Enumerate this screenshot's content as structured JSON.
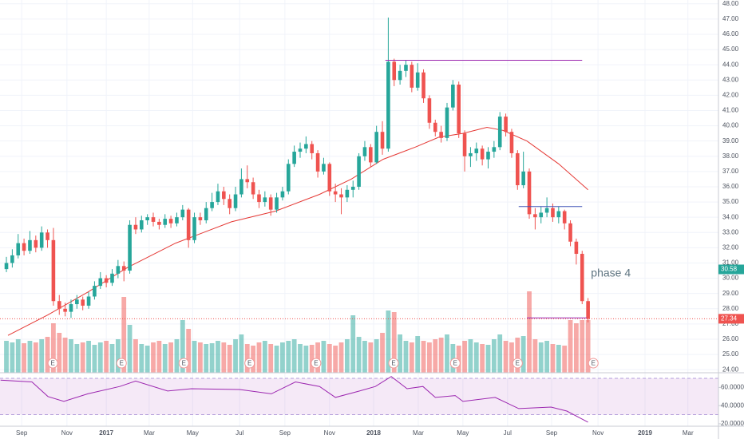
{
  "chart_data": {
    "type": "candlestick",
    "xlim": [
      -1.09,
      121.2
    ],
    "xticks": [
      {
        "value": 2.6,
        "label": "Sep"
      },
      {
        "value": 10.3,
        "label": "Nov"
      },
      {
        "value": 17,
        "label": "2017"
      },
      {
        "value": 24.3,
        "label": "Mar"
      },
      {
        "value": 31.7,
        "label": "May"
      },
      {
        "value": 39.7,
        "label": "Jul"
      },
      {
        "value": 47.4,
        "label": "Sep"
      },
      {
        "value": 55,
        "label": "Nov"
      },
      {
        "value": 62.5,
        "label": "2018"
      },
      {
        "value": 70.1,
        "label": "Mar"
      },
      {
        "value": 77.7,
        "label": "May"
      },
      {
        "value": 85.3,
        "label": "Jul"
      },
      {
        "value": 92.8,
        "label": "Sep"
      },
      {
        "value": 100.7,
        "label": "Nov"
      },
      {
        "value": 108.7,
        "label": "2019"
      },
      {
        "value": 116,
        "label": "Mar"
      }
    ],
    "ylim": [
      23.8,
      48.25
    ],
    "yticks": [
      {
        "value": 24,
        "label": "24.00"
      },
      {
        "value": 25,
        "label": "25.00"
      },
      {
        "value": 26,
        "label": "26.00"
      },
      {
        "value": 27,
        "label": "27.00"
      },
      {
        "value": 28,
        "label": "28.00"
      },
      {
        "value": 29,
        "label": "29.00"
      },
      {
        "value": 30,
        "label": "30.00"
      },
      {
        "value": 31,
        "label": "31.00"
      },
      {
        "value": 32,
        "label": "32.00"
      },
      {
        "value": 33,
        "label": "33.00"
      },
      {
        "value": 34,
        "label": "34.00"
      },
      {
        "value": 35,
        "label": "35.00"
      },
      {
        "value": 36,
        "label": "36.00"
      },
      {
        "value": 37,
        "label": "37.00"
      },
      {
        "value": 38,
        "label": "38.00"
      },
      {
        "value": 39,
        "label": "39.00"
      },
      {
        "value": 40,
        "label": "40.00"
      },
      {
        "value": 41,
        "label": "41.00"
      },
      {
        "value": 42,
        "label": "42.00"
      },
      {
        "value": 43,
        "label": "43.00"
      },
      {
        "value": 44,
        "label": "44.00"
      },
      {
        "value": 45,
        "label": "45.00"
      },
      {
        "value": 46,
        "label": "46.00"
      },
      {
        "value": 47,
        "label": "47.00"
      },
      {
        "value": 48,
        "label": "48.00"
      }
    ],
    "grid": true,
    "candles": {
      "up_color": "#26a69a",
      "down_color": "#ef5350",
      "ohlc": [
        [
          30.6,
          31.4,
          30.4,
          31.0
        ],
        [
          31.0,
          31.9,
          30.7,
          31.5
        ],
        [
          31.5,
          32.9,
          31.3,
          32.3
        ],
        [
          32.3,
          32.6,
          31.5,
          31.8
        ],
        [
          31.8,
          33.1,
          31.6,
          32.5
        ],
        [
          32.5,
          32.8,
          31.7,
          32.0
        ],
        [
          32.0,
          33.4,
          31.8,
          33.0
        ],
        [
          33.0,
          33.2,
          32.0,
          32.5
        ],
        [
          32.5,
          33.3,
          28.2,
          28.5
        ],
        [
          28.5,
          28.9,
          27.6,
          28.0
        ],
        [
          28.0,
          28.4,
          27.5,
          27.8
        ],
        [
          27.8,
          28.6,
          27.4,
          28.3
        ],
        [
          28.3,
          28.9,
          28.0,
          28.6
        ],
        [
          28.6,
          28.8,
          27.9,
          28.2
        ],
        [
          28.2,
          29.1,
          28.0,
          28.8
        ],
        [
          28.8,
          29.8,
          28.6,
          29.5
        ],
        [
          29.5,
          30.4,
          29.3,
          30.0
        ],
        [
          30.0,
          30.2,
          29.4,
          29.7
        ],
        [
          29.7,
          30.6,
          29.5,
          30.3
        ],
        [
          30.3,
          31.2,
          30.0,
          30.8
        ],
        [
          30.8,
          31.1,
          29.8,
          30.5
        ],
        [
          30.5,
          33.8,
          30.3,
          33.5
        ],
        [
          33.5,
          34.0,
          32.9,
          33.2
        ],
        [
          33.2,
          34.1,
          33.0,
          33.8
        ],
        [
          33.8,
          34.2,
          33.5,
          34.0
        ],
        [
          34.0,
          34.3,
          33.4,
          33.7
        ],
        [
          33.7,
          33.9,
          33.2,
          33.5
        ],
        [
          33.5,
          34.2,
          33.3,
          33.9
        ],
        [
          33.9,
          34.1,
          33.3,
          33.6
        ],
        [
          33.6,
          34.3,
          33.4,
          34.0
        ],
        [
          34.0,
          34.8,
          33.8,
          34.5
        ],
        [
          34.5,
          34.6,
          32.0,
          32.5
        ],
        [
          32.5,
          34.3,
          32.3,
          34.0
        ],
        [
          34.0,
          34.3,
          33.5,
          33.8
        ],
        [
          33.8,
          35.0,
          33.6,
          34.6
        ],
        [
          34.6,
          35.6,
          34.4,
          35.0
        ],
        [
          35.0,
          36.2,
          34.8,
          35.7
        ],
        [
          35.7,
          36.0,
          34.8,
          35.2
        ],
        [
          35.2,
          35.5,
          34.2,
          34.6
        ],
        [
          34.6,
          36.0,
          34.4,
          35.5
        ],
        [
          35.5,
          37.2,
          35.3,
          36.5
        ],
        [
          36.5,
          37.4,
          35.9,
          36.3
        ],
        [
          36.3,
          36.6,
          35.2,
          35.5
        ],
        [
          35.5,
          35.8,
          34.6,
          35.0
        ],
        [
          35.0,
          35.7,
          34.7,
          35.3
        ],
        [
          35.3,
          35.5,
          34.1,
          34.5
        ],
        [
          34.5,
          35.6,
          34.3,
          35.3
        ],
        [
          35.3,
          36.0,
          35.1,
          35.7
        ],
        [
          35.7,
          37.8,
          35.5,
          37.5
        ],
        [
          37.5,
          38.7,
          37.3,
          38.3
        ],
        [
          38.3,
          38.9,
          37.9,
          38.5
        ],
        [
          38.5,
          39.3,
          38.2,
          38.8
        ],
        [
          38.8,
          39.0,
          37.8,
          38.2
        ],
        [
          38.2,
          38.4,
          36.6,
          37.0
        ],
        [
          37.0,
          37.9,
          36.8,
          37.5
        ],
        [
          37.5,
          37.6,
          35.4,
          35.7
        ],
        [
          35.7,
          36.2,
          35.0,
          35.5
        ],
        [
          35.5,
          35.9,
          34.2,
          35.3
        ],
        [
          35.3,
          36.1,
          35.0,
          35.8
        ],
        [
          35.8,
          36.4,
          35.3,
          36.0
        ],
        [
          36.0,
          38.2,
          35.8,
          38.0
        ],
        [
          38.0,
          39.0,
          37.7,
          38.6
        ],
        [
          38.6,
          38.8,
          37.3,
          37.6
        ],
        [
          37.6,
          40.0,
          37.5,
          39.6
        ],
        [
          39.6,
          40.3,
          38.1,
          38.5
        ],
        [
          38.5,
          47.1,
          38.3,
          44.2
        ],
        [
          44.2,
          44.4,
          42.6,
          43.0
        ],
        [
          43.0,
          44.0,
          42.7,
          43.6
        ],
        [
          43.6,
          44.3,
          43.2,
          44.0
        ],
        [
          44.0,
          44.2,
          42.2,
          42.5
        ],
        [
          42.5,
          44.1,
          42.3,
          43.5
        ],
        [
          43.5,
          43.7,
          41.5,
          41.8
        ],
        [
          41.8,
          42.0,
          39.8,
          40.2
        ],
        [
          40.2,
          40.4,
          39.3,
          39.6
        ],
        [
          39.6,
          40.0,
          38.9,
          39.2
        ],
        [
          39.2,
          41.5,
          39.0,
          41.2
        ],
        [
          41.2,
          43.0,
          41.0,
          42.7
        ],
        [
          42.7,
          42.9,
          39.2,
          39.5
        ],
        [
          39.5,
          39.7,
          37.0,
          38.0
        ],
        [
          38.0,
          38.6,
          37.3,
          38.2
        ],
        [
          38.2,
          38.9,
          37.7,
          38.5
        ],
        [
          38.5,
          38.7,
          37.4,
          37.8
        ],
        [
          37.8,
          38.6,
          37.2,
          38.3
        ],
        [
          38.3,
          39.0,
          37.9,
          38.6
        ],
        [
          38.6,
          40.9,
          38.4,
          40.6
        ],
        [
          40.6,
          40.8,
          39.3,
          39.6
        ],
        [
          39.6,
          39.8,
          37.9,
          38.2
        ],
        [
          38.2,
          38.4,
          35.8,
          36.1
        ],
        [
          36.1,
          38.3,
          35.9,
          37.0
        ],
        [
          37.0,
          37.2,
          33.9,
          34.2
        ],
        [
          34.2,
          34.6,
          33.2,
          34.0
        ],
        [
          34.0,
          34.7,
          33.6,
          34.3
        ],
        [
          34.3,
          35.3,
          34.0,
          34.6
        ],
        [
          34.6,
          34.9,
          33.7,
          34.0
        ],
        [
          34.0,
          34.7,
          33.6,
          34.4
        ],
        [
          34.4,
          34.5,
          33.2,
          33.6
        ],
        [
          33.6,
          33.8,
          32.1,
          32.4
        ],
        [
          32.4,
          32.6,
          30.9,
          31.6
        ],
        [
          31.6,
          31.8,
          28.3,
          28.5
        ],
        [
          28.5,
          28.7,
          27.1,
          27.34
        ]
      ]
    },
    "volume": {
      "vlim": [
        0,
        100
      ],
      "values": [
        40,
        38,
        42,
        37,
        40,
        38,
        42,
        45,
        62,
        50,
        44,
        42,
        36,
        38,
        40,
        35,
        38,
        40,
        36,
        42,
        95,
        60,
        42,
        36,
        34,
        38,
        40,
        36,
        38,
        42,
        66,
        55,
        40,
        38,
        36,
        37,
        40,
        38,
        35,
        42,
        48,
        36,
        34,
        38,
        40,
        36,
        34,
        38,
        40,
        42,
        36,
        34,
        35,
        38,
        40,
        36,
        34,
        38,
        42,
        72,
        45,
        40,
        38,
        42,
        50,
        78,
        76,
        48,
        40,
        38,
        46,
        40,
        38,
        42,
        44,
        48,
        36,
        34,
        40,
        42,
        38,
        36,
        35,
        42,
        48,
        40,
        38,
        44,
        46,
        102,
        42,
        38,
        40,
        36,
        35,
        34,
        66,
        62,
        66,
        66
      ]
    },
    "ma": {
      "color": "#e53935",
      "x": [
        0.27,
        7.07,
        13.9,
        20.6,
        28.8,
        38.3,
        45.8,
        53.3,
        58.7,
        64.1,
        69.6,
        73.6,
        77.7,
        81.8,
        84.5,
        88.6,
        94.0,
        99.0
      ],
      "values": [
        26.25,
        27.6,
        29.1,
        30.7,
        32.3,
        33.7,
        34.4,
        35.5,
        36.5,
        37.8,
        38.6,
        39.25,
        39.5,
        39.9,
        39.7,
        39.0,
        37.5,
        35.8
      ]
    },
    "rsi": {
      "color": "#9c27b0",
      "ylim": [
        18.2,
        73.5
      ],
      "yticks": [
        {
          "value": 20,
          "label": "20.0000"
        },
        {
          "value": 40,
          "label": "40.0000"
        },
        {
          "value": 60,
          "label": "60.0000"
        }
      ],
      "bands": [
        30,
        70
      ],
      "x": [
        -1.0,
        4.35,
        7.07,
        9.78,
        13.86,
        19.29,
        22.0,
        27.45,
        31.5,
        39.7,
        45.1,
        49.2,
        53.3,
        56.0,
        60.1,
        62.8,
        65.5,
        68.2,
        70.9,
        73.0,
        76.4,
        77.7,
        83.2,
        87.2,
        92.7,
        95.4,
        99.0
      ],
      "values": [
        68,
        66,
        50,
        44.6,
        53,
        61,
        67,
        56,
        58.6,
        57.7,
        53,
        66,
        61,
        49,
        56,
        61,
        72,
        58.6,
        61,
        49,
        51,
        44.6,
        49,
        36.7,
        38.4,
        34,
        21.8
      ]
    },
    "lines": [
      {
        "x": [
          64.5,
          98.0
        ],
        "y": 44.3,
        "color": "#9c27b0"
      },
      {
        "x": [
          87.2,
          98.0
        ],
        "y": 34.7,
        "color": "#3f51b5"
      },
      {
        "x": [
          88.6,
          98.8
        ],
        "y": 27.4,
        "color": "#9c27b0"
      }
    ],
    "annotation": {
      "text": "phase 4",
      "x": 99.5,
      "y": 30.3
    },
    "price_labels": [
      {
        "value": 30.58,
        "label": "30.58",
        "color": "#26a69a"
      },
      {
        "value": 27.34,
        "label": "27.34",
        "color": "#ef5350"
      }
    ],
    "earnings": {
      "label": "E",
      "x": [
        7.9,
        19.6,
        30.2,
        41.4,
        52.7,
        65.9,
        76.4,
        87.0,
        99.9
      ]
    }
  }
}
